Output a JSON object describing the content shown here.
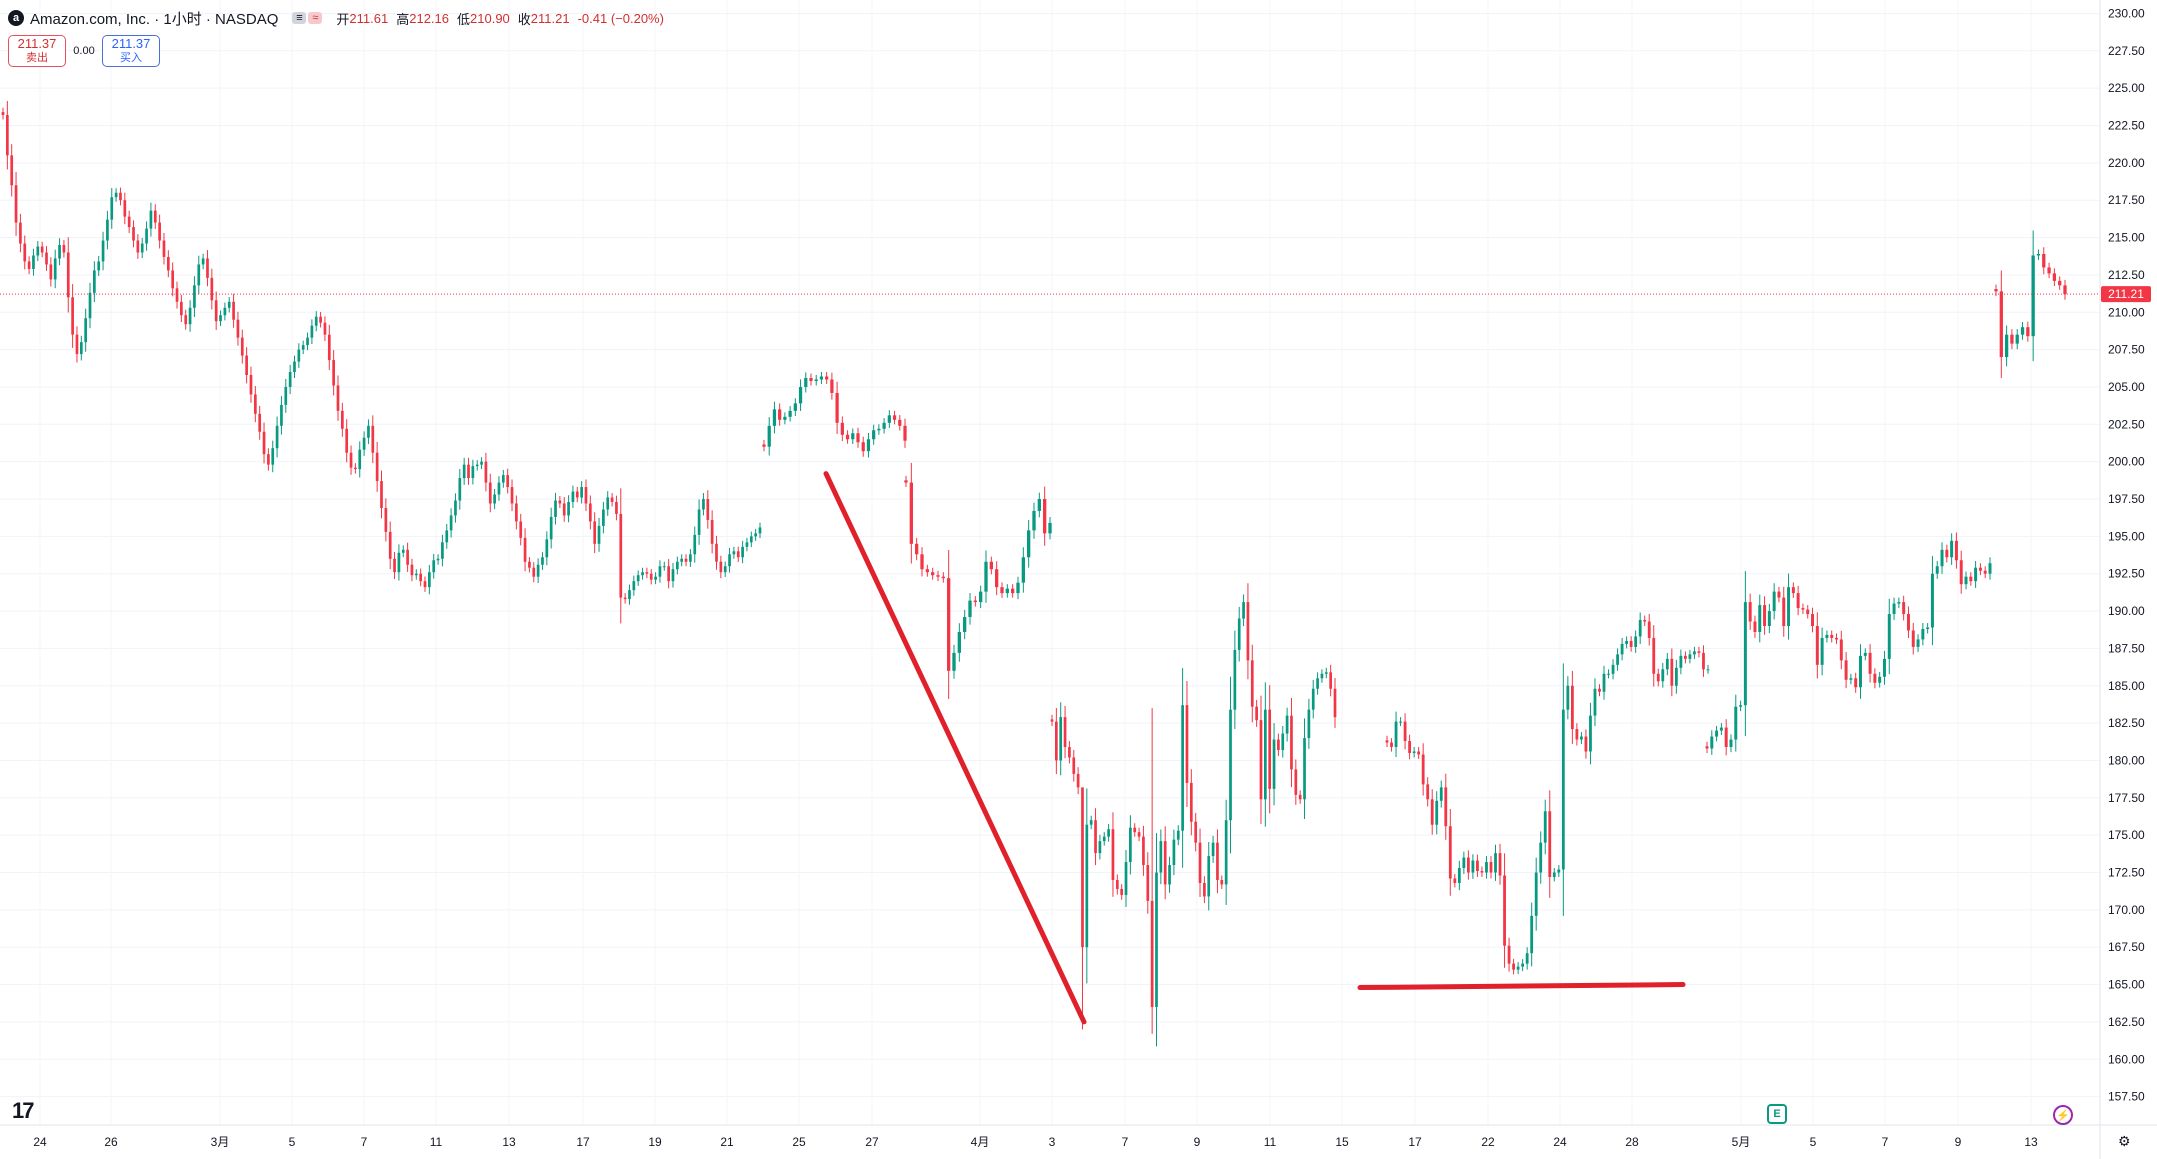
{
  "header": {
    "title": "Amazon.com, Inc. · 1小时 · NASDAQ",
    "logo_letter": "a",
    "indicator_icons": [
      "≡",
      "≈"
    ],
    "open_label": "开",
    "open_value": "211.61",
    "high_label": "高",
    "high_value": "212.16",
    "low_label": "低",
    "low_value": "210.90",
    "close_label": "收",
    "close_value": "211.21",
    "change": "-0.41 (−0.20%)"
  },
  "trade": {
    "sell_price": "211.37",
    "sell_label": "卖出",
    "spread": "0.00",
    "buy_price": "211.37",
    "buy_label": "买入"
  },
  "colors": {
    "up": "#089981",
    "down": "#f23645",
    "drawing": "#e0202b",
    "price_tag": "#f23645"
  },
  "icons": {
    "tradingview_logo": "TV-logo",
    "earnings_badge": "E",
    "bolt": "⚡",
    "settings": "⚙"
  },
  "chart_data": {
    "type": "candlestick",
    "timeframe": "1小时",
    "price_axis_labels": [
      "230.00",
      "227.50",
      "225.00",
      "222.50",
      "220.00",
      "217.50",
      "215.00",
      "212.50",
      "210.00",
      "207.50",
      "205.00",
      "202.50",
      "200.00",
      "197.50",
      "195.00",
      "192.50",
      "190.00",
      "187.50",
      "185.00",
      "182.50",
      "180.00",
      "177.50",
      "175.00",
      "172.50",
      "170.00",
      "167.50",
      "165.00",
      "162.50",
      "160.00",
      "157.50"
    ],
    "ylim": [
      155.6,
      230.9
    ],
    "time_axis_labels": [
      "24",
      "26",
      "3月",
      "5",
      "7",
      "11",
      "13",
      "17",
      "19",
      "21",
      "25",
      "27",
      "4月",
      "3",
      "7",
      "9",
      "11",
      "15",
      "17",
      "22",
      "24",
      "28",
      "5月",
      "5",
      "7",
      "9",
      "13"
    ],
    "last_price": "211.21",
    "series": [
      {
        "segment": "Feb 24 – Mar 21",
        "closes": [
          223.2,
          220.5,
          218.5,
          216.0,
          214.6,
          213.4,
          212.9,
          213.8,
          214.4,
          214.0,
          213.2,
          212.2,
          213.6,
          214.5,
          214.0,
          211.0,
          208.5,
          207.2,
          208.0,
          209.6,
          211.3,
          212.8,
          213.4,
          214.8,
          216.2,
          217.7,
          218.0,
          217.5,
          216.4,
          215.7,
          214.8,
          214.0,
          214.6,
          215.6,
          216.8,
          216.0,
          214.8,
          213.7,
          212.8,
          211.6,
          210.7,
          209.8,
          209.2,
          210.3,
          211.8,
          213.2,
          213.6,
          212.3,
          210.8,
          209.4,
          209.8,
          210.3,
          210.7,
          209.5,
          208.3,
          207.1,
          205.8,
          204.5,
          203.2,
          202.0,
          200.5,
          199.8,
          200.9,
          202.4,
          203.8,
          205.0,
          206.0,
          206.7,
          207.5,
          207.8,
          208.3,
          209.1,
          209.7,
          209.3,
          208.5,
          206.8,
          205.1,
          203.4,
          202.2,
          200.6,
          199.6,
          199.5,
          200.8,
          201.6,
          202.4,
          200.6,
          198.7,
          196.9,
          195.3,
          193.5,
          192.6,
          193.9,
          194.1,
          193.1,
          192.4,
          192.5,
          192.0,
          191.6,
          192.6,
          193.4,
          193.5,
          194.6,
          195.4,
          196.4,
          197.4,
          198.9,
          199.8,
          198.9,
          199.7,
          199.8,
          200.0,
          198.6,
          197.2,
          197.8,
          198.6,
          199.1,
          198.3,
          197.2,
          196.0,
          194.9,
          193.3,
          192.9,
          192.3,
          193.1,
          193.6,
          194.8,
          196.3,
          197.4,
          197.2,
          196.4,
          197.3,
          198.0,
          197.6,
          198.3,
          197.2,
          196.0,
          194.5,
          195.7,
          196.8,
          197.6,
          197.3,
          196.5,
          190.9,
          190.8,
          191.4,
          192.0,
          192.4,
          192.6,
          192.5,
          192.1,
          192.3,
          193.0,
          193.0,
          192.0,
          192.8,
          193.3,
          193.5,
          193.3,
          193.8,
          195.1,
          196.8,
          197.5,
          196.1,
          194.5,
          193.3,
          192.6,
          193.0,
          193.8,
          194.0,
          193.6,
          194.3,
          194.6,
          195.0,
          195.2,
          195.6
        ]
      },
      {
        "segment": "Mar 24 – Mar 28",
        "closes": [
          201.0,
          202.4,
          203.5,
          202.8,
          203.0,
          203.4,
          203.9,
          205.0,
          205.6,
          205.4,
          205.5,
          205.7,
          205.5,
          204.6,
          202.6,
          201.8,
          201.5,
          201.9,
          201.3,
          200.7,
          201.5,
          202.1,
          202.2,
          202.6,
          203.1,
          202.8,
          202.4,
          201.4
        ]
      },
      {
        "segment": "Mar 31 – Apr 2",
        "closes": [
          198.6,
          194.5,
          193.8,
          192.8,
          192.6,
          192.4,
          192.3,
          192.2,
          186.0,
          187.2,
          188.6,
          189.6,
          190.7,
          190.6,
          191.3,
          193.3,
          192.8,
          191.6,
          191.2,
          191.5,
          191.2,
          191.9,
          193.6,
          195.4,
          196.7,
          197.5,
          195.2,
          195.9
        ]
      },
      {
        "segment": "Apr 3 – Apr 11",
        "closes": [
          182.6,
          180.0,
          182.9,
          180.9,
          180.2,
          179.1,
          178.2,
          167.5,
          175.7,
          176.0,
          173.8,
          174.6,
          174.9,
          175.4,
          172.0,
          171.4,
          171.0,
          173.2,
          175.5,
          175.2,
          174.9,
          173.0,
          170.6,
          163.5,
          172.5,
          174.6,
          171.7,
          173.0,
          174.7,
          175.3,
          183.7,
          178.5,
          175.9,
          174.5,
          171.8,
          170.9,
          173.6,
          174.5,
          172.0,
          171.7,
          176.0,
          183.4,
          187.4,
          189.5,
          190.6,
          186.7,
          183.6,
          182.7,
          177.4,
          183.4,
          178.1,
          181.4,
          180.7,
          181.8,
          183.0,
          179.4,
          177.7,
          177.4,
          181.5,
          183.4,
          184.8,
          185.5,
          185.8,
          185.9,
          184.8,
          182.9
        ]
      },
      {
        "segment": "Apr 14 – Apr 25",
        "closes": [
          181.2,
          180.9,
          182.6,
          182.6,
          181.3,
          180.5,
          180.6,
          180.4,
          178.4,
          177.4,
          175.7,
          177.3,
          178.2,
          175.6,
          172.1,
          171.8,
          172.8,
          173.5,
          172.5,
          173.3,
          172.6,
          172.5,
          173.2,
          172.5,
          173.8,
          172.3,
          167.6,
          166.4,
          166.0,
          166.2,
          166.4,
          167.1,
          169.6,
          172.5,
          174.5,
          176.6,
          172.2,
          172.5,
          172.7,
          183.4,
          185.0,
          182.1,
          181.4,
          181.6,
          180.6,
          183.0,
          184.8,
          184.6,
          185.8,
          185.8,
          186.4,
          187.1,
          187.8,
          188.0,
          187.6,
          188.3,
          189.4,
          189.3,
          188.2,
          185.8,
          185.3,
          186.1,
          186.8,
          185.0,
          186.2,
          187.0,
          186.8,
          187.1,
          187.3,
          187.2,
          186.1,
          186.1
        ]
      },
      {
        "segment": "Apr 28 – May 9",
        "closes": [
          180.8,
          181.6,
          182.0,
          182.2,
          180.9,
          181.4,
          183.6,
          183.7,
          190.6,
          189.3,
          188.6,
          190.4,
          189.0,
          190.0,
          191.3,
          190.9,
          189.0,
          191.6,
          191.2,
          190.2,
          190.1,
          189.8,
          189.0,
          186.4,
          188.2,
          188.4,
          188.2,
          188.1,
          186.7,
          185.4,
          185.5,
          184.9,
          187.0,
          187.2,
          185.8,
          185.2,
          185.6,
          186.8,
          189.8,
          190.5,
          190.6,
          189.8,
          188.7,
          187.6,
          188.1,
          188.8,
          188.9,
          192.5,
          193.0,
          194.1,
          193.6,
          194.7,
          193.4,
          191.8,
          192.3,
          192.0,
          192.9,
          192.7,
          192.5,
          193.2
        ]
      },
      {
        "segment": "May 12 – May 14",
        "closes": [
          211.4,
          207.0,
          208.5,
          207.9,
          208.5,
          209.0,
          208.4,
          213.8,
          213.9,
          213.0,
          212.6,
          212.1,
          211.8,
          211.21
        ]
      }
    ],
    "drawings": [
      {
        "type": "trend-line",
        "start": {
          "date": "Mar 26",
          "price": 199.2
        },
        "end": {
          "date": "Apr 4",
          "price": 162.5
        }
      },
      {
        "type": "horizontal-line",
        "start": {
          "date": "Apr 15",
          "price": 164.8
        },
        "end": {
          "date": "Apr 29",
          "price": 165.0
        }
      }
    ]
  }
}
